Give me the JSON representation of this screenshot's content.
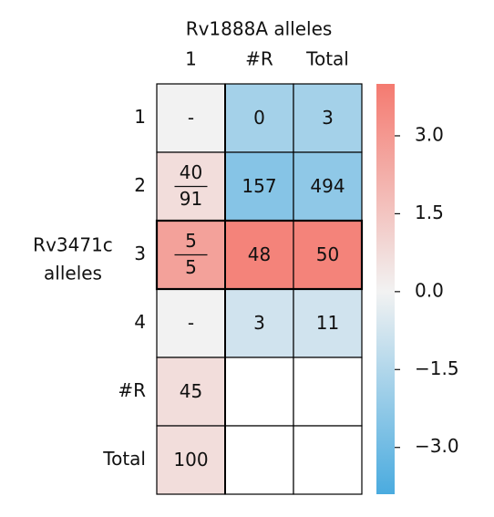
{
  "chart_data": {
    "type": "heatmap",
    "title": "Rv1888A alleles",
    "y_label": [
      "Rv3471c",
      "alleles"
    ],
    "columns": [
      "1",
      "#R",
      "Total"
    ],
    "rows": [
      "1",
      "2",
      "3",
      "4",
      "#R",
      "Total"
    ],
    "cell_labels": [
      [
        "-",
        "0",
        "3"
      ],
      [
        {
          "numerator": "40",
          "denominator": "91"
        },
        "157",
        "494"
      ],
      [
        {
          "numerator": "5",
          "denominator": "5"
        },
        "48",
        "50"
      ],
      [
        "-",
        "3",
        "11"
      ],
      [
        "45",
        null,
        null
      ],
      [
        "100",
        null,
        null
      ]
    ],
    "values": [
      [
        0,
        -1.8,
        -1.8
      ],
      [
        0.7,
        -2.5,
        -2.3
      ],
      [
        2.7,
        3.7,
        3.7
      ],
      [
        0,
        -0.8,
        -0.8
      ],
      [
        0.7,
        null,
        null
      ],
      [
        0.7,
        null,
        null
      ]
    ],
    "colors": [
      "#4aabdf",
      "#f2f2f2",
      "#f47a70"
    ],
    "colorbar_lim": [
      -3.9,
      4.0
    ],
    "colorbar_ticks": [
      {
        "value": 3.0,
        "label": "3.0"
      },
      {
        "value": 1.5,
        "label": "1.5"
      },
      {
        "value": 0.0,
        "label": "0.0"
      },
      {
        "value": -1.5,
        "label": "−1.5"
      },
      {
        "value": -3.0,
        "label": "−3.0"
      }
    ]
  }
}
